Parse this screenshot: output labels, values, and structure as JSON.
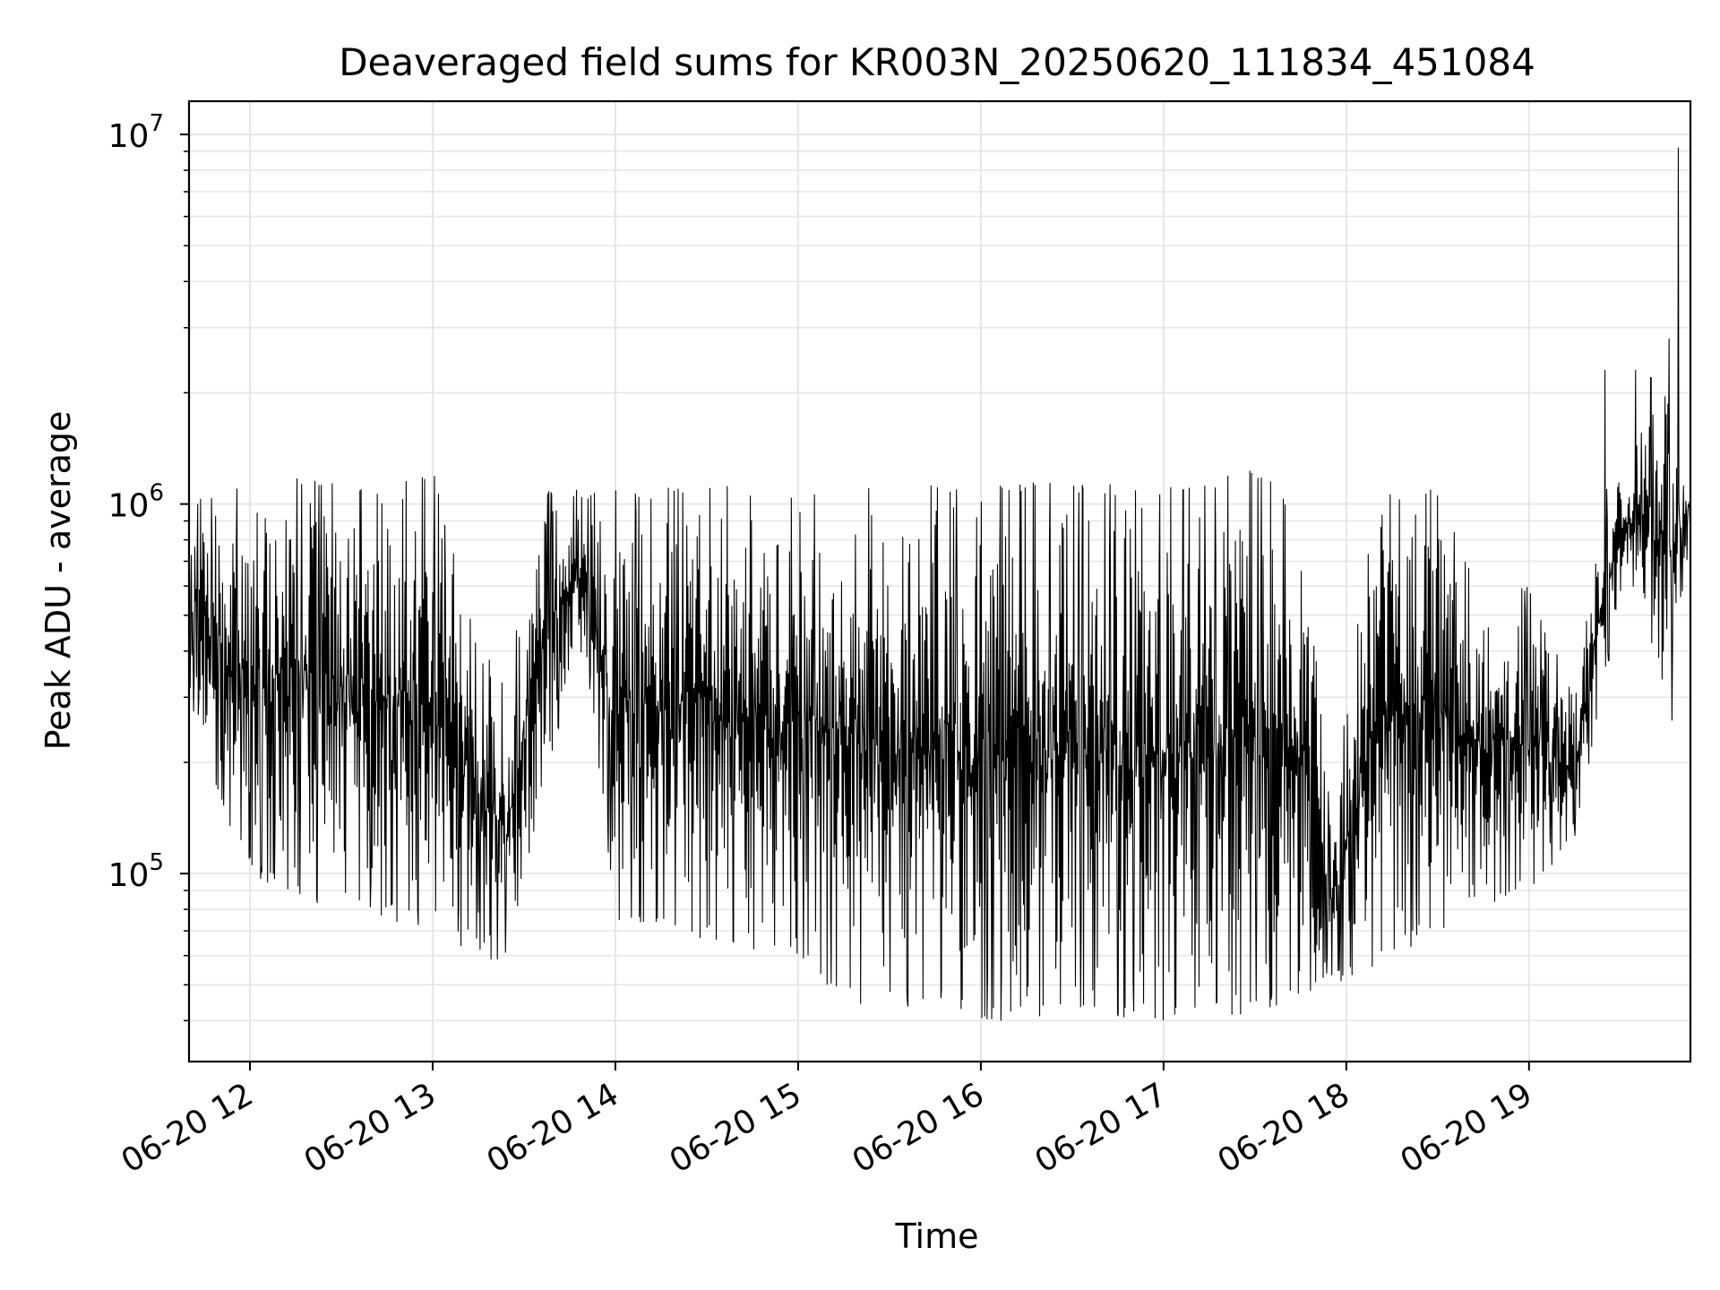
{
  "chart_data": {
    "type": "line",
    "title": "Deaveraged field sums for KR003N_20250620_111834_451084",
    "xlabel": "Time",
    "ylabel": "Peak ADU - average",
    "yscale": "log",
    "ylim": [
      31000,
      12300000
    ],
    "xlim": [
      "2025-06-20T11:40",
      "2025-06-20T19:53"
    ],
    "grid": true,
    "line_color": "#000000",
    "grid_color": "#e6e6e6",
    "x_ticks": [
      {
        "value": "2025-06-20T12:00",
        "label": "06-20 12"
      },
      {
        "value": "2025-06-20T13:00",
        "label": "06-20 13"
      },
      {
        "value": "2025-06-20T14:00",
        "label": "06-20 14"
      },
      {
        "value": "2025-06-20T15:00",
        "label": "06-20 15"
      },
      {
        "value": "2025-06-20T16:00",
        "label": "06-20 16"
      },
      {
        "value": "2025-06-20T17:00",
        "label": "06-20 17"
      },
      {
        "value": "2025-06-20T18:00",
        "label": "06-20 18"
      },
      {
        "value": "2025-06-20T19:00",
        "label": "06-20 19"
      }
    ],
    "y_ticks": [
      {
        "value": 100000,
        "base": "10",
        "exp": "5"
      },
      {
        "value": 1000000,
        "base": "10",
        "exp": "6"
      },
      {
        "value": 10000000,
        "base": "10",
        "exp": "7"
      }
    ],
    "series": [
      {
        "style": "dense-oscillating",
        "envelope": [
          {
            "t": "2025-06-20T11:40",
            "low": 300000,
            "high": 1050000
          },
          {
            "t": "2025-06-20T11:50",
            "low": 150000,
            "high": 1100000
          },
          {
            "t": "2025-06-20T12:00",
            "low": 100000,
            "high": 1100000
          },
          {
            "t": "2025-06-20T12:15",
            "low": 85000,
            "high": 1200000
          },
          {
            "t": "2025-06-20T12:30",
            "low": 80000,
            "high": 1200000
          },
          {
            "t": "2025-06-20T12:45",
            "low": 75000,
            "high": 1100000
          },
          {
            "t": "2025-06-20T13:00",
            "low": 70000,
            "high": 1250000
          },
          {
            "t": "2025-06-20T13:15",
            "low": 60000,
            "high": 400000
          },
          {
            "t": "2025-06-20T13:25",
            "low": 55000,
            "high": 350000
          },
          {
            "t": "2025-06-20T13:35",
            "low": 150000,
            "high": 1100000
          },
          {
            "t": "2025-06-20T13:50",
            "low": 400000,
            "high": 1100000
          },
          {
            "t": "2025-06-20T14:00",
            "low": 70000,
            "high": 1100000
          },
          {
            "t": "2025-06-20T14:30",
            "low": 65000,
            "high": 1150000
          },
          {
            "t": "2025-06-20T15:00",
            "low": 60000,
            "high": 1100000
          },
          {
            "t": "2025-06-20T15:15",
            "low": 45000,
            "high": 1150000
          },
          {
            "t": "2025-06-20T15:45",
            "low": 42000,
            "high": 1150000
          },
          {
            "t": "2025-06-20T16:00",
            "low": 40000,
            "high": 1150000
          },
          {
            "t": "2025-06-20T16:30",
            "low": 40000,
            "high": 1150000
          },
          {
            "t": "2025-06-20T17:00",
            "low": 40000,
            "high": 1100000
          },
          {
            "t": "2025-06-20T17:30",
            "low": 42000,
            "high": 1250000
          },
          {
            "t": "2025-06-20T17:45",
            "low": 45000,
            "high": 1000000
          },
          {
            "t": "2025-06-20T17:55",
            "low": 50000,
            "high": 150000
          },
          {
            "t": "2025-06-20T18:10",
            "low": 55000,
            "high": 1100000
          },
          {
            "t": "2025-06-20T18:30",
            "low": 70000,
            "high": 1100000
          },
          {
            "t": "2025-06-20T18:45",
            "low": 80000,
            "high": 550000
          },
          {
            "t": "2025-06-20T19:00",
            "low": 90000,
            "high": 600000
          },
          {
            "t": "2025-06-20T19:15",
            "low": 120000,
            "high": 300000
          },
          {
            "t": "2025-06-20T19:25",
            "low": 350000,
            "high": 1100000
          },
          {
            "t": "2025-06-20T19:35",
            "low": 600000,
            "high": 1500000
          },
          {
            "t": "2025-06-20T19:45",
            "low": 300000,
            "high": 2000000
          },
          {
            "t": "2025-06-20T19:53",
            "low": 800000,
            "high": 1200000
          }
        ],
        "spikes": [
          {
            "t": "2025-06-20T19:25",
            "value": 2300000
          },
          {
            "t": "2025-06-20T19:35",
            "value": 2300000
          },
          {
            "t": "2025-06-20T19:40",
            "value": 2200000
          },
          {
            "t": "2025-06-20T19:46",
            "value": 2800000
          },
          {
            "t": "2025-06-20T19:49",
            "value": 9200000
          },
          {
            "t": "2025-06-20T19:47",
            "value": 260000
          }
        ]
      }
    ]
  }
}
